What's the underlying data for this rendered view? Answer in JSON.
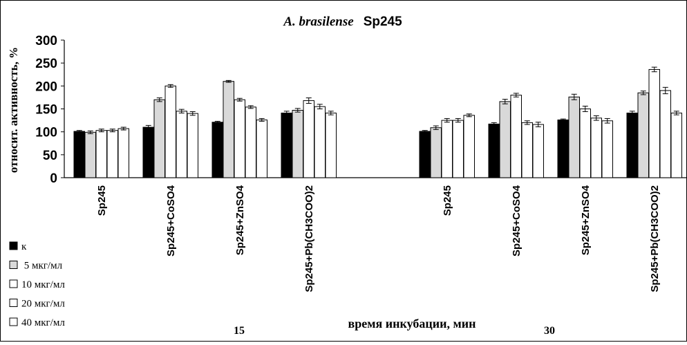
{
  "chart_data": {
    "type": "bar",
    "title_italic": "A. brasilense",
    "title_rest": "Sp245",
    "ylabel": "относит. активность, %",
    "xlabel": "время инкубации, мин",
    "ylim": [
      0,
      300
    ],
    "yticks": [
      "0",
      "50",
      "100",
      "150",
      "200",
      "250",
      "300"
    ],
    "grid": false,
    "legend_position": "left-bottom",
    "series": [
      {
        "name": "к",
        "color": "#000000"
      },
      {
        "name": " 5 мкг/мл",
        "color": "#d9d9d9"
      },
      {
        "name": "10 мкг/мл",
        "color": "#ffffff"
      },
      {
        "name": "20 мкг/мл",
        "color": "#ffffff"
      },
      {
        "name": "40 мкг/мл",
        "color": "#ffffff"
      }
    ],
    "groups": [
      {
        "label": "15",
        "categories": [
          {
            "label": "Sp245",
            "values": [
              101,
              99,
              103,
              103,
              107
            ],
            "errors": [
              2,
              3,
              3,
              3,
              3
            ]
          },
          {
            "label": "Sp245+CoSO4",
            "values": [
              110,
              170,
              200,
              145,
              140
            ],
            "errors": [
              4,
              4,
              3,
              4,
              4
            ]
          },
          {
            "label": "Sp245+ZnSO4",
            "values": [
              121,
              210,
              170,
              154,
              126
            ],
            "errors": [
              2,
              2,
              3,
              3,
              3
            ]
          },
          {
            "label": "Sp245+Pb(CH3COO)2",
            "values": [
              141,
              147,
              168,
              155,
              141
            ],
            "errors": [
              4,
              4,
              6,
              5,
              4
            ]
          }
        ]
      },
      {
        "label": "30",
        "categories": [
          {
            "label": "Sp245",
            "values": [
              101,
              109,
              125,
              125,
              136
            ],
            "errors": [
              2,
              4,
              4,
              4,
              3
            ]
          },
          {
            "label": "Sp245+CoSO4",
            "values": [
              117,
              166,
              180,
              120,
              116
            ],
            "errors": [
              3,
              5,
              4,
              4,
              5
            ]
          },
          {
            "label": "Sp245+ZnSO4",
            "values": [
              126,
              176,
              150,
              130,
              124
            ],
            "errors": [
              2,
              6,
              6,
              5,
              5
            ]
          },
          {
            "label": "Sp245+Pb(CH3COO)2",
            "values": [
              141,
              185,
              236,
              190,
              141
            ],
            "errors": [
              4,
              4,
              5,
              7,
              4
            ]
          }
        ]
      }
    ]
  }
}
